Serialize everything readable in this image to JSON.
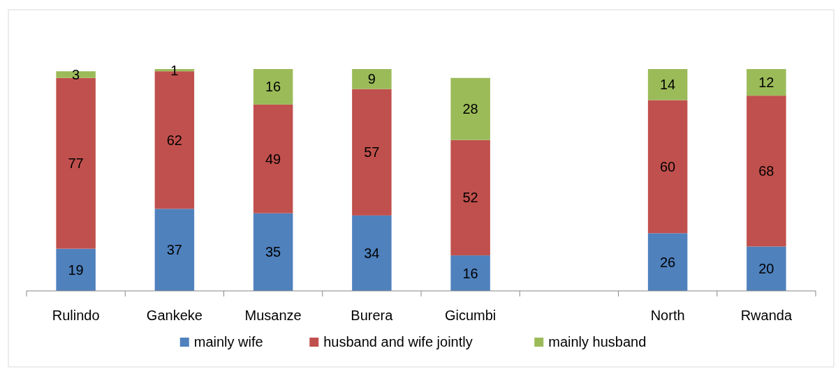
{
  "chart_data": {
    "type": "bar",
    "stacked": true,
    "categories": [
      "Rulindo",
      "Gankeke",
      "Musanze",
      "Burera",
      "Gicumbi",
      null,
      "North",
      "Rwanda"
    ],
    "series": [
      {
        "name": "mainly wife",
        "color": "#4f81bd",
        "values": [
          19,
          37,
          35,
          34,
          16,
          null,
          26,
          20
        ]
      },
      {
        "name": "husband and wife jointly",
        "color": "#c0504d",
        "values": [
          77,
          62,
          49,
          57,
          52,
          null,
          60,
          68
        ]
      },
      {
        "name": "mainly husband",
        "color": "#9bbb59",
        "values": [
          3,
          1,
          16,
          9,
          28,
          null,
          14,
          12
        ]
      }
    ],
    "tick_labels": "x",
    "data_labels": true,
    "legend": "bottom"
  }
}
